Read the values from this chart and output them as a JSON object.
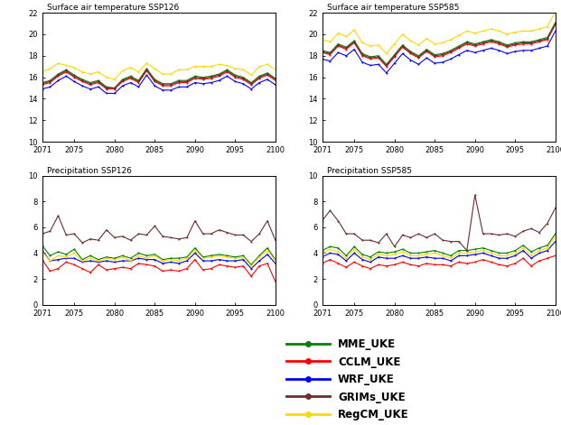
{
  "years": [
    2071,
    2072,
    2073,
    2074,
    2075,
    2076,
    2077,
    2078,
    2079,
    2080,
    2081,
    2082,
    2083,
    2084,
    2085,
    2086,
    2087,
    2088,
    2089,
    2090,
    2091,
    2092,
    2093,
    2094,
    2095,
    2096,
    2097,
    2098,
    2099,
    2100
  ],
  "temp_ssp126": {
    "MME": [
      15.5,
      15.7,
      16.3,
      16.7,
      16.2,
      15.8,
      15.5,
      15.7,
      15.1,
      15.0,
      15.8,
      16.1,
      15.7,
      16.8,
      15.8,
      15.4,
      15.4,
      15.7,
      15.7,
      16.1,
      16.0,
      16.1,
      16.3,
      16.7,
      16.2,
      16.0,
      15.5,
      16.1,
      16.4,
      15.9
    ],
    "CCLM": [
      15.3,
      15.5,
      16.1,
      16.5,
      16.0,
      15.6,
      15.3,
      15.5,
      14.9,
      14.9,
      15.6,
      15.9,
      15.5,
      16.6,
      15.6,
      15.2,
      15.2,
      15.5,
      15.5,
      15.9,
      15.8,
      15.9,
      16.1,
      16.5,
      16.0,
      15.8,
      15.3,
      15.9,
      16.2,
      15.7
    ],
    "WRF": [
      14.9,
      15.1,
      15.7,
      16.1,
      15.6,
      15.2,
      14.9,
      15.1,
      14.5,
      14.5,
      15.2,
      15.5,
      15.1,
      16.2,
      15.2,
      14.8,
      14.8,
      15.1,
      15.1,
      15.5,
      15.4,
      15.5,
      15.7,
      16.1,
      15.6,
      15.4,
      14.9,
      15.5,
      15.8,
      15.3
    ],
    "GRIMs": [
      15.4,
      15.6,
      16.2,
      16.6,
      16.1,
      15.7,
      15.4,
      15.6,
      15.0,
      15.0,
      15.7,
      16.0,
      15.6,
      16.7,
      15.7,
      15.3,
      15.3,
      15.6,
      15.6,
      16.0,
      15.9,
      16.0,
      16.2,
      16.6,
      16.1,
      15.9,
      15.4,
      16.0,
      16.3,
      15.8
    ],
    "RegCM": [
      16.5,
      16.8,
      17.3,
      17.1,
      16.9,
      16.5,
      16.3,
      16.5,
      16.0,
      15.8,
      16.6,
      16.9,
      16.5,
      17.3,
      16.8,
      16.3,
      16.3,
      16.7,
      16.7,
      17.0,
      17.0,
      17.0,
      17.2,
      17.1,
      16.8,
      16.7,
      16.2,
      17.0,
      17.2,
      16.7
    ]
  },
  "temp_ssp585": {
    "MME": [
      18.5,
      18.3,
      19.1,
      18.8,
      19.4,
      18.2,
      17.9,
      18.0,
      17.2,
      18.1,
      19.0,
      18.4,
      18.0,
      18.6,
      18.1,
      18.2,
      18.5,
      18.9,
      19.3,
      19.1,
      19.3,
      19.5,
      19.3,
      19.0,
      19.2,
      19.3,
      19.3,
      19.5,
      19.7,
      21.1
    ],
    "CCLM": [
      18.3,
      18.1,
      18.9,
      18.6,
      19.2,
      18.0,
      17.7,
      17.8,
      17.0,
      17.9,
      18.8,
      18.2,
      17.8,
      18.4,
      17.9,
      18.0,
      18.3,
      18.7,
      19.1,
      18.9,
      19.1,
      19.3,
      19.1,
      18.8,
      19.0,
      19.1,
      19.1,
      19.3,
      19.5,
      20.9
    ],
    "WRF": [
      17.7,
      17.5,
      18.3,
      18.0,
      18.6,
      17.4,
      17.1,
      17.2,
      16.4,
      17.3,
      18.2,
      17.6,
      17.2,
      17.8,
      17.3,
      17.4,
      17.7,
      18.1,
      18.5,
      18.3,
      18.5,
      18.7,
      18.5,
      18.2,
      18.4,
      18.5,
      18.5,
      18.7,
      18.9,
      20.3
    ],
    "GRIMs": [
      18.4,
      18.2,
      19.0,
      18.7,
      19.3,
      18.1,
      17.8,
      17.9,
      17.1,
      18.0,
      18.9,
      18.3,
      17.9,
      18.5,
      18.0,
      18.1,
      18.4,
      18.8,
      19.2,
      19.0,
      19.2,
      19.4,
      19.2,
      18.9,
      19.1,
      19.2,
      19.2,
      19.4,
      19.6,
      21.0
    ],
    "RegCM": [
      19.5,
      19.3,
      20.1,
      19.8,
      20.4,
      19.2,
      18.9,
      19.0,
      18.2,
      19.1,
      20.0,
      19.4,
      19.0,
      19.6,
      19.1,
      19.2,
      19.5,
      19.9,
      20.3,
      20.1,
      20.3,
      20.5,
      20.3,
      20.0,
      20.2,
      20.3,
      20.3,
      20.5,
      20.7,
      22.1
    ]
  },
  "precip_ssp126": {
    "MME": [
      4.6,
      3.8,
      4.1,
      3.9,
      4.3,
      3.5,
      3.8,
      3.5,
      3.7,
      3.6,
      3.8,
      3.6,
      4.0,
      3.8,
      3.9,
      3.5,
      3.6,
      3.6,
      3.7,
      4.4,
      3.7,
      3.8,
      3.9,
      3.8,
      3.7,
      3.8,
      3.1,
      3.8,
      4.4,
      3.5
    ],
    "CCLM": [
      3.5,
      2.6,
      2.8,
      3.3,
      3.1,
      2.8,
      2.5,
      3.1,
      2.7,
      2.8,
      2.9,
      2.8,
      3.2,
      3.1,
      3.0,
      2.6,
      2.7,
      2.6,
      2.8,
      3.5,
      2.7,
      2.8,
      3.1,
      3.0,
      2.9,
      3.0,
      2.2,
      3.0,
      3.2,
      1.8
    ],
    "WRF": [
      4.2,
      3.4,
      3.5,
      3.6,
      3.6,
      3.3,
      3.4,
      3.3,
      3.4,
      3.3,
      3.4,
      3.4,
      3.6,
      3.5,
      3.5,
      3.2,
      3.3,
      3.2,
      3.4,
      4.0,
      3.4,
      3.4,
      3.5,
      3.4,
      3.4,
      3.5,
      2.8,
      3.4,
      3.9,
      3.2
    ],
    "GRIMs": [
      5.5,
      5.7,
      6.9,
      5.4,
      5.5,
      4.8,
      5.1,
      5.0,
      5.8,
      5.2,
      5.3,
      5.0,
      5.5,
      5.4,
      6.1,
      5.3,
      5.2,
      5.1,
      5.2,
      6.5,
      5.5,
      5.5,
      5.8,
      5.6,
      5.4,
      5.4,
      4.9,
      5.5,
      6.5,
      5.0
    ],
    "RegCM": [
      4.1,
      3.4,
      3.8,
      3.7,
      4.0,
      3.4,
      3.6,
      3.4,
      3.6,
      3.5,
      3.7,
      3.4,
      3.8,
      3.6,
      3.8,
      3.4,
      3.5,
      3.4,
      3.6,
      4.2,
      3.6,
      3.7,
      3.8,
      3.7,
      3.6,
      3.7,
      3.0,
      3.7,
      4.2,
      3.4
    ]
  },
  "precip_ssp585": {
    "MME": [
      4.2,
      4.5,
      4.4,
      3.8,
      4.5,
      3.9,
      3.7,
      4.1,
      4.0,
      4.1,
      4.3,
      4.0,
      4.0,
      4.1,
      4.2,
      4.0,
      3.8,
      4.2,
      4.2,
      4.3,
      4.4,
      4.2,
      4.0,
      4.0,
      4.2,
      4.6,
      4.1,
      4.4,
      4.6,
      5.5
    ],
    "CCLM": [
      3.2,
      3.5,
      3.2,
      2.9,
      3.3,
      3.0,
      2.8,
      3.1,
      3.0,
      3.1,
      3.3,
      3.1,
      3.0,
      3.2,
      3.1,
      3.1,
      3.0,
      3.3,
      3.2,
      3.3,
      3.5,
      3.3,
      3.1,
      3.0,
      3.2,
      3.6,
      3.0,
      3.4,
      3.6,
      3.8
    ],
    "WRF": [
      3.7,
      4.0,
      3.9,
      3.4,
      4.0,
      3.5,
      3.3,
      3.7,
      3.6,
      3.6,
      3.8,
      3.6,
      3.6,
      3.7,
      3.6,
      3.6,
      3.4,
      3.8,
      3.8,
      3.9,
      4.0,
      3.8,
      3.6,
      3.6,
      3.8,
      4.2,
      3.6,
      4.0,
      4.2,
      4.9
    ],
    "GRIMs": [
      6.5,
      7.3,
      6.5,
      5.5,
      5.5,
      5.0,
      5.0,
      4.8,
      5.5,
      4.5,
      5.4,
      5.2,
      5.5,
      5.2,
      5.5,
      5.0,
      4.9,
      4.9,
      4.2,
      8.5,
      5.5,
      5.5,
      5.4,
      5.5,
      5.3,
      5.7,
      5.9,
      5.6,
      6.3,
      7.5
    ],
    "RegCM": [
      4.0,
      4.3,
      4.1,
      3.6,
      4.3,
      3.7,
      3.5,
      3.9,
      3.8,
      3.9,
      4.1,
      3.8,
      3.8,
      3.9,
      4.0,
      3.8,
      3.6,
      4.0,
      4.0,
      4.1,
      4.2,
      4.0,
      3.8,
      3.8,
      4.0,
      4.4,
      3.8,
      4.2,
      4.4,
      5.3
    ]
  },
  "colors": {
    "MME": "#008000",
    "CCLM": "#FF0000",
    "WRF": "#0000FF",
    "GRIMs": "#6B2D2D",
    "RegCM": "#FFD700"
  },
  "titles": {
    "temp126": "Surface air temperature SSP126",
    "temp585": "Surface air temperature SSP585",
    "prec126": "Precipitation SSP126",
    "prec585": "Precipitation SSP585"
  },
  "legend_labels": [
    "MME_UKE",
    "CCLM_UKE",
    "WRF_UKE",
    "GRIMs_UKE",
    "RegCM_UKE"
  ],
  "temp_ylim": [
    10.0,
    22.0
  ],
  "temp_yticks": [
    10.0,
    12.0,
    14.0,
    16.0,
    18.0,
    20.0,
    22.0
  ],
  "prec_ylim": [
    0,
    10
  ],
  "prec_yticks": [
    0,
    2,
    4,
    6,
    8,
    10
  ],
  "xlim": [
    2071,
    2100
  ],
  "xticks": [
    2071,
    2075,
    2080,
    2085,
    2090,
    2095,
    2100
  ]
}
